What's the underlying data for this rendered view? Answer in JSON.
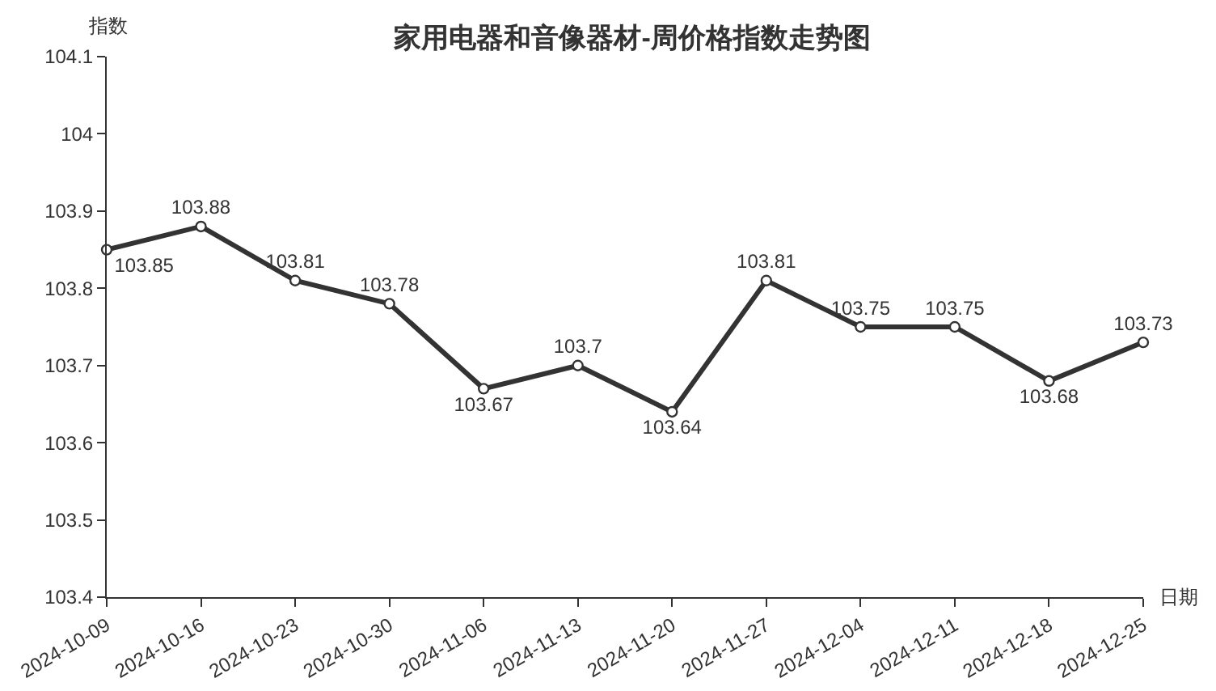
{
  "chart_data": {
    "type": "line",
    "title": "家用电器和音像器材-周价格指数走势图",
    "xlabel": "日期",
    "ylabel": "指数",
    "categories": [
      "2024-10-09",
      "2024-10-16",
      "2024-10-23",
      "2024-10-30",
      "2024-11-06",
      "2024-11-13",
      "2024-11-20",
      "2024-11-27",
      "2024-12-04",
      "2024-12-11",
      "2024-12-18",
      "2024-12-25"
    ],
    "series": [
      {
        "color": "#333333",
        "values": [
          103.85,
          103.88,
          103.81,
          103.78,
          103.67,
          103.7,
          103.64,
          103.81,
          103.75,
          103.75,
          103.68,
          103.73
        ]
      }
    ],
    "ylim": [
      103.4,
      104.1
    ],
    "yticks": [
      103.4,
      103.5,
      103.6,
      103.7,
      103.8,
      103.9,
      104,
      104.1
    ],
    "data_labels": true,
    "marker": "circle",
    "line_style": "solid"
  }
}
